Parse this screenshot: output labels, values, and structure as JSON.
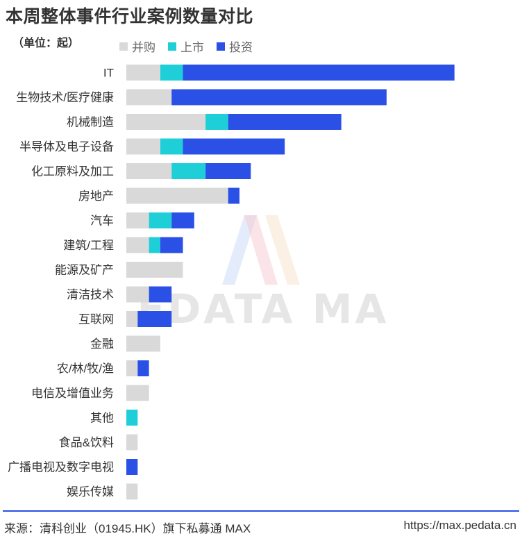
{
  "chart_data": {
    "type": "bar",
    "orientation": "horizontal",
    "stacked": true,
    "title": "本周整体事件行业案例数量对比",
    "unit_label": "（单位：起）",
    "categories": [
      "IT",
      "生物技术/医疗健康",
      "机械制造",
      "半导体及电子设备",
      "化工原料及加工",
      "房地产",
      "汽车",
      "建筑/工程",
      "能源及矿产",
      "清洁技术",
      "互联网",
      "金融",
      "农/林/牧/渔",
      "电信及增值业务",
      "其他",
      "食品&饮料",
      "广播电视及数字电视",
      "娱乐传媒"
    ],
    "series": [
      {
        "name": "并购",
        "color": "#d9d9d9",
        "values": [
          3,
          4,
          7,
          3,
          4,
          9,
          2,
          2,
          5,
          2,
          1,
          3,
          1,
          2,
          0,
          1,
          0,
          1
        ]
      },
      {
        "name": "上市",
        "color": "#1fcfd8",
        "values": [
          2,
          0,
          2,
          2,
          3,
          0,
          2,
          1,
          0,
          0,
          0,
          0,
          0,
          0,
          1,
          0,
          0,
          0
        ]
      },
      {
        "name": "投资",
        "color": "#2a50e6",
        "values": [
          24,
          19,
          10,
          9,
          4,
          1,
          2,
          2,
          0,
          2,
          3,
          0,
          1,
          0,
          0,
          0,
          1,
          0
        ]
      }
    ],
    "xlim": [
      0,
      29
    ],
    "xlabel": "",
    "ylabel": "",
    "grid": false,
    "legend": "top-left"
  },
  "watermark": {
    "text": "PEDATA MAX"
  },
  "footer": {
    "source": "来源：清科创业（01945.HK）旗下私募通 MAX",
    "url": "https://max.pedata.cn"
  }
}
